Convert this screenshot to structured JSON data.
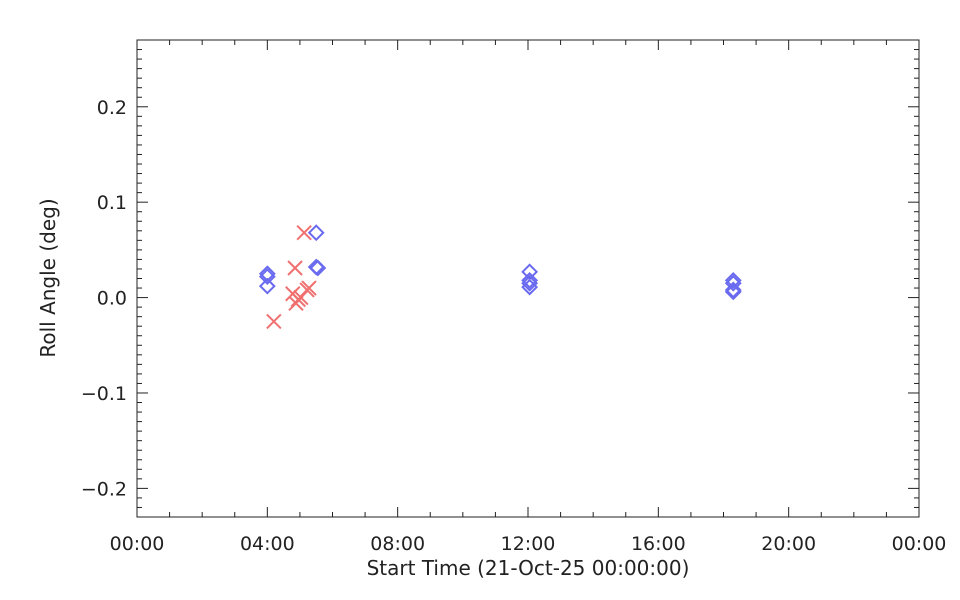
{
  "chart_data": {
    "type": "scatter",
    "title": "",
    "xlabel": "Start Time (21-Oct-25 00:00:00)",
    "ylabel": "Roll Angle (deg)",
    "xlim": [
      0,
      24
    ],
    "ylim": [
      -0.23,
      0.27
    ],
    "x_ticks": [
      0,
      4,
      8,
      12,
      16,
      20,
      24
    ],
    "x_tick_labels": [
      "00:00",
      "04:00",
      "08:00",
      "12:00",
      "16:00",
      "20:00",
      "00:00"
    ],
    "y_ticks": [
      -0.2,
      -0.1,
      0.0,
      0.1,
      0.2
    ],
    "y_tick_labels": [
      "−0.2",
      "−0.1",
      "0.0",
      "0.1",
      "0.2"
    ],
    "grid": false,
    "series": [
      {
        "marker": "cross",
        "color": "#f07070",
        "points": [
          {
            "x": 4.2,
            "y": -0.025
          },
          {
            "x": 4.78,
            "y": 0.004
          },
          {
            "x": 4.85,
            "y": 0.031
          },
          {
            "x": 4.88,
            "y": -0.006
          },
          {
            "x": 4.95,
            "y": -0.002
          },
          {
            "x": 5.03,
            "y": 0.0
          },
          {
            "x": 5.13,
            "y": 0.068
          },
          {
            "x": 5.22,
            "y": 0.008
          },
          {
            "x": 5.28,
            "y": 0.01
          }
        ]
      },
      {
        "marker": "diamond",
        "color": "#6a6af0",
        "points": [
          {
            "x": 4.0,
            "y": 0.025
          },
          {
            "x": 4.0,
            "y": 0.022
          },
          {
            "x": 4.0,
            "y": 0.012
          },
          {
            "x": 5.5,
            "y": 0.068
          },
          {
            "x": 5.5,
            "y": 0.032
          },
          {
            "x": 5.55,
            "y": 0.031
          },
          {
            "x": 12.05,
            "y": 0.027
          },
          {
            "x": 12.05,
            "y": 0.018
          },
          {
            "x": 12.05,
            "y": 0.015
          },
          {
            "x": 12.05,
            "y": 0.011
          },
          {
            "x": 18.3,
            "y": 0.018
          },
          {
            "x": 18.3,
            "y": 0.015
          },
          {
            "x": 18.3,
            "y": 0.008
          },
          {
            "x": 18.3,
            "y": 0.006
          }
        ]
      }
    ]
  }
}
